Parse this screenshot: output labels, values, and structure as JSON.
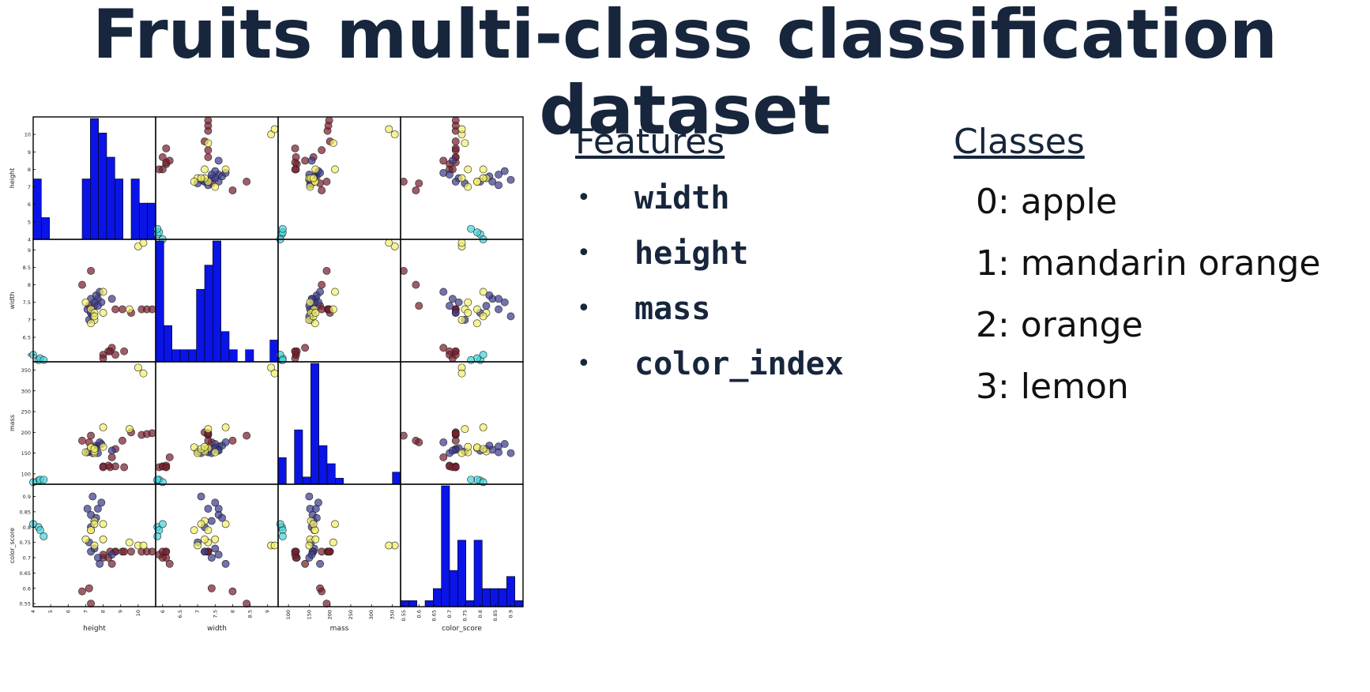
{
  "title": "Fruits multi-class classification dataset",
  "features": {
    "heading": "Features",
    "items": [
      "width",
      "height",
      "mass",
      "color_index"
    ]
  },
  "classes": {
    "heading": "Classes",
    "items": [
      "0: apple",
      "1: mandarin orange",
      "2: orange",
      "3: lemon"
    ]
  },
  "colors": {
    "class_0": "#7a1f2e",
    "class_1": "#3b3b8f",
    "class_2": "#41d6de",
    "class_3": "#f2ef6a",
    "hist_fill": "#0a14e6",
    "title": "#17263c"
  },
  "chart_data": {
    "type": "scatter",
    "variables": [
      "height",
      "width",
      "mass",
      "color_score"
    ],
    "ranges": {
      "height": [
        4,
        11
      ],
      "width": [
        5.8,
        9.3
      ],
      "mass": [
        75,
        370
      ],
      "color_score": [
        0.54,
        0.94
      ]
    },
    "ticks": {
      "height": [
        4,
        5,
        6,
        7,
        8,
        9,
        10
      ],
      "width": [
        6.0,
        6.5,
        7.0,
        7.5,
        8.0,
        8.5,
        9.0
      ],
      "mass": [
        100,
        150,
        200,
        250,
        300,
        350
      ],
      "color_score": [
        0.55,
        0.6,
        0.65,
        0.7,
        0.75,
        0.8,
        0.85,
        0.9
      ]
    },
    "histograms": {
      "height": [
        0.5,
        0.18,
        0,
        0,
        0,
        0,
        0.5,
        1.0,
        0.88,
        0.68,
        0.5,
        0,
        0.5,
        0.3,
        0.3
      ],
      "width": [
        1.0,
        0.3,
        0.1,
        0.1,
        0.1,
        0.6,
        0.8,
        1.0,
        0.25,
        0.1,
        0,
        0.1,
        0,
        0,
        0.18
      ],
      "mass": [
        0.22,
        0,
        0.45,
        0.06,
        1.0,
        0.32,
        0.17,
        0.05,
        0,
        0,
        0,
        0,
        0,
        0,
        0.1
      ],
      "color_score": [
        0.05,
        0.05,
        0,
        0.05,
        0.15,
        1.0,
        0.3,
        0.55,
        0.05,
        0.55,
        0.15,
        0.15,
        0.15,
        0.25,
        0.05
      ]
    },
    "points": [
      {
        "c": 0,
        "v": [
          7.3,
          8.4,
          192,
          0.55
        ]
      },
      {
        "c": 0,
        "v": [
          6.8,
          8.0,
          180,
          0.59
        ]
      },
      {
        "c": 0,
        "v": [
          7.2,
          7.4,
          176,
          0.6
        ]
      },
      {
        "c": 0,
        "v": [
          8.5,
          6.2,
          140,
          0.68
        ]
      },
      {
        "c": 0,
        "v": [
          8.3,
          6.1,
          120,
          0.7
        ]
      },
      {
        "c": 0,
        "v": [
          8.0,
          6.0,
          118,
          0.7
        ]
      },
      {
        "c": 0,
        "v": [
          8.4,
          6.1,
          116,
          0.72
        ]
      },
      {
        "c": 0,
        "v": [
          8.0,
          5.9,
          116,
          0.71
        ]
      },
      {
        "c": 0,
        "v": [
          8.7,
          6.0,
          118,
          0.72
        ]
      },
      {
        "c": 0,
        "v": [
          8.7,
          7.3,
          160,
          0.72
        ]
      },
      {
        "c": 0,
        "v": [
          9.1,
          7.3,
          180,
          0.72
        ]
      },
      {
        "c": 0,
        "v": [
          9.6,
          7.2,
          200,
          0.72
        ]
      },
      {
        "c": 0,
        "v": [
          10.2,
          7.3,
          194,
          0.72
        ]
      },
      {
        "c": 0,
        "v": [
          10.5,
          7.3,
          196,
          0.72
        ]
      },
      {
        "c": 0,
        "v": [
          10.8,
          7.3,
          198,
          0.72
        ]
      },
      {
        "c": 0,
        "v": [
          9.2,
          6.1,
          116,
          0.72
        ]
      },
      {
        "c": 1,
        "v": [
          7.3,
          7.6,
          158,
          0.84
        ]
      },
      {
        "c": 1,
        "v": [
          7.5,
          7.4,
          160,
          0.82
        ]
      },
      {
        "c": 1,
        "v": [
          7.3,
          7.2,
          156,
          0.8
        ]
      },
      {
        "c": 1,
        "v": [
          7.7,
          7.6,
          166,
          0.86
        ]
      },
      {
        "c": 1,
        "v": [
          7.9,
          7.5,
          172,
          0.88
        ]
      },
      {
        "c": 1,
        "v": [
          7.1,
          7.3,
          152,
          0.86
        ]
      },
      {
        "c": 1,
        "v": [
          7.4,
          7.1,
          150,
          0.9
        ]
      },
      {
        "c": 1,
        "v": [
          7.6,
          7.7,
          168,
          0.83
        ]
      },
      {
        "c": 1,
        "v": [
          7.2,
          7.0,
          154,
          0.75
        ]
      },
      {
        "c": 1,
        "v": [
          7.5,
          7.5,
          162,
          0.73
        ]
      },
      {
        "c": 1,
        "v": [
          7.3,
          7.2,
          158,
          0.72
        ]
      },
      {
        "c": 1,
        "v": [
          7.7,
          7.4,
          150,
          0.7
        ]
      },
      {
        "c": 1,
        "v": [
          7.8,
          7.8,
          176,
          0.68
        ]
      },
      {
        "c": 1,
        "v": [
          8.5,
          7.6,
          156,
          0.71
        ]
      },
      {
        "c": 2,
        "v": [
          4.3,
          5.85,
          84,
          0.8
        ]
      },
      {
        "c": 2,
        "v": [
          4.4,
          5.9,
          86,
          0.79
        ]
      },
      {
        "c": 2,
        "v": [
          4.0,
          6.0,
          80,
          0.81
        ]
      },
      {
        "c": 2,
        "v": [
          4.6,
          5.85,
          86,
          0.77
        ]
      },
      {
        "c": 3,
        "v": [
          7.3,
          7.3,
          162,
          0.79
        ]
      },
      {
        "c": 3,
        "v": [
          7.0,
          7.5,
          152,
          0.76
        ]
      },
      {
        "c": 3,
        "v": [
          8.0,
          7.8,
          212,
          0.81
        ]
      },
      {
        "c": 3,
        "v": [
          9.5,
          7.3,
          208,
          0.75
        ]
      },
      {
        "c": 3,
        "v": [
          7.5,
          7.0,
          150,
          0.74
        ]
      },
      {
        "c": 3,
        "v": [
          7.5,
          7.2,
          154,
          0.82
        ]
      },
      {
        "c": 3,
        "v": [
          7.3,
          6.9,
          164,
          0.79
        ]
      },
      {
        "c": 3,
        "v": [
          10.0,
          9.1,
          356,
          0.74
        ]
      },
      {
        "c": 3,
        "v": [
          10.3,
          9.2,
          342,
          0.74
        ]
      },
      {
        "c": 3,
        "v": [
          7.5,
          7.1,
          160,
          0.81
        ]
      },
      {
        "c": 3,
        "v": [
          8.0,
          7.2,
          165,
          0.76
        ]
      }
    ]
  }
}
